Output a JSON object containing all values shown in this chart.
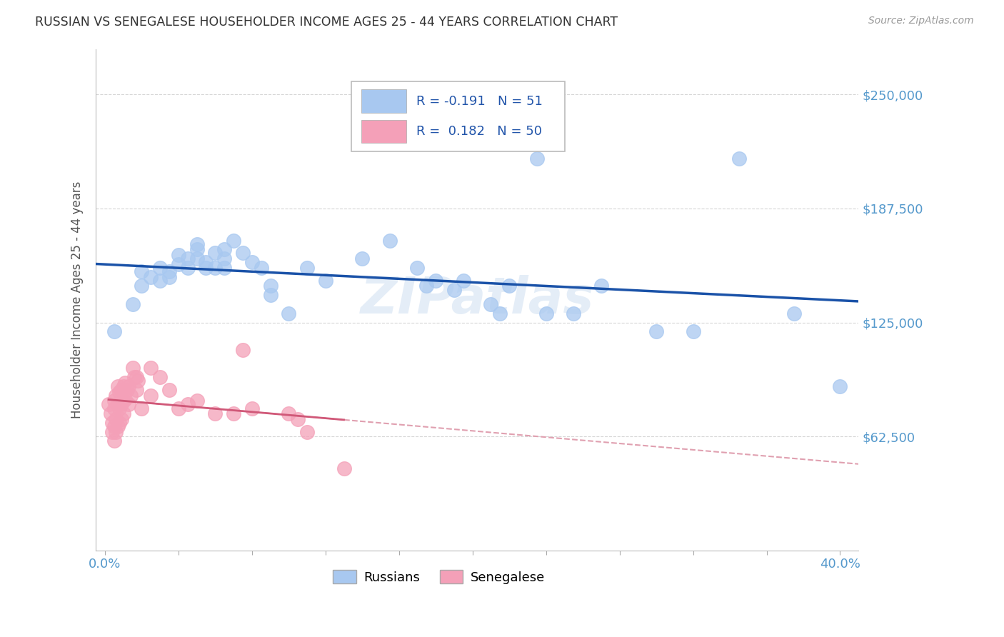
{
  "title": "RUSSIAN VS SENEGALESE HOUSEHOLDER INCOME AGES 25 - 44 YEARS CORRELATION CHART",
  "source": "Source: ZipAtlas.com",
  "ylabel": "Householder Income Ages 25 - 44 years",
  "ytick_labels": [
    "$62,500",
    "$125,000",
    "$187,500",
    "$250,000"
  ],
  "ytick_vals": [
    62500,
    125000,
    187500,
    250000
  ],
  "ylim": [
    0,
    275000
  ],
  "xlim": [
    -0.005,
    0.41
  ],
  "russian_R": -0.191,
  "russian_N": 51,
  "senegalese_R": 0.182,
  "senegalese_N": 50,
  "russian_color": "#a8c8f0",
  "senegalese_color": "#f4a0b8",
  "russian_line_color": "#1a52a8",
  "senegalese_line_color": "#d05878",
  "senegalese_dash_color": "#e0a0b0",
  "grid_color": "#cccccc",
  "background_color": "#ffffff",
  "watermark": "ZIPatlas",
  "ytick_color": "#5599cc",
  "xtick_color": "#5599cc",
  "russian_x": [
    0.005,
    0.015,
    0.02,
    0.02,
    0.025,
    0.03,
    0.03,
    0.035,
    0.035,
    0.04,
    0.04,
    0.045,
    0.045,
    0.05,
    0.05,
    0.05,
    0.055,
    0.055,
    0.06,
    0.06,
    0.065,
    0.065,
    0.065,
    0.07,
    0.075,
    0.08,
    0.085,
    0.09,
    0.09,
    0.1,
    0.11,
    0.12,
    0.14,
    0.155,
    0.17,
    0.175,
    0.18,
    0.19,
    0.195,
    0.21,
    0.215,
    0.22,
    0.235,
    0.24,
    0.255,
    0.27,
    0.3,
    0.32,
    0.345,
    0.375,
    0.4
  ],
  "russian_y": [
    120000,
    135000,
    153000,
    145000,
    150000,
    155000,
    148000,
    153000,
    150000,
    157000,
    162000,
    155000,
    160000,
    165000,
    168000,
    160000,
    158000,
    155000,
    163000,
    155000,
    160000,
    165000,
    155000,
    170000,
    163000,
    158000,
    155000,
    145000,
    140000,
    130000,
    155000,
    148000,
    160000,
    170000,
    155000,
    145000,
    148000,
    143000,
    148000,
    135000,
    130000,
    145000,
    215000,
    130000,
    130000,
    145000,
    120000,
    120000,
    215000,
    130000,
    90000
  ],
  "senegalese_x": [
    0.002,
    0.003,
    0.004,
    0.004,
    0.005,
    0.005,
    0.005,
    0.005,
    0.006,
    0.006,
    0.006,
    0.007,
    0.007,
    0.007,
    0.008,
    0.008,
    0.008,
    0.009,
    0.009,
    0.009,
    0.01,
    0.01,
    0.01,
    0.011,
    0.011,
    0.012,
    0.013,
    0.013,
    0.014,
    0.015,
    0.016,
    0.017,
    0.017,
    0.018,
    0.02,
    0.025,
    0.025,
    0.03,
    0.035,
    0.04,
    0.045,
    0.05,
    0.06,
    0.07,
    0.075,
    0.08,
    0.1,
    0.105,
    0.11,
    0.13
  ],
  "senegalese_y": [
    80000,
    75000,
    70000,
    65000,
    82000,
    78000,
    68000,
    60000,
    85000,
    72000,
    65000,
    90000,
    80000,
    68000,
    87000,
    78000,
    70000,
    88000,
    80000,
    72000,
    90000,
    82000,
    75000,
    92000,
    83000,
    88000,
    90000,
    80000,
    85000,
    100000,
    95000,
    95000,
    88000,
    93000,
    78000,
    100000,
    85000,
    95000,
    88000,
    78000,
    80000,
    82000,
    75000,
    75000,
    110000,
    78000,
    75000,
    72000,
    65000,
    45000
  ]
}
